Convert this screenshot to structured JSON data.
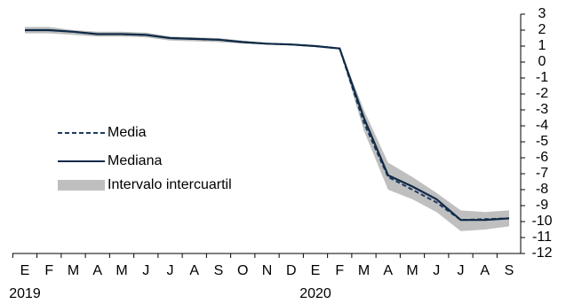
{
  "chart_data": {
    "type": "line",
    "categories": [
      "E",
      "F",
      "M",
      "A",
      "M",
      "J",
      "J",
      "A",
      "S",
      "O",
      "N",
      "D",
      "E",
      "F",
      "M",
      "A",
      "M",
      "J",
      "J",
      "A",
      "S"
    ],
    "category_years": [
      "2019",
      null,
      null,
      null,
      null,
      null,
      null,
      null,
      null,
      null,
      null,
      null,
      "2020",
      null,
      null,
      null,
      null,
      null,
      null,
      null,
      null
    ],
    "series": [
      {
        "name": "Media",
        "color": "#1f3a5f",
        "dashed": true,
        "values": [
          2.0,
          2.0,
          1.9,
          1.75,
          1.75,
          1.7,
          1.5,
          1.45,
          1.4,
          1.25,
          1.15,
          1.1,
          1.0,
          0.85,
          -3.8,
          -7.2,
          -8.0,
          -8.8,
          -9.9,
          -9.85,
          -9.8
        ]
      },
      {
        "name": "Mediana",
        "color": "#0f2a47",
        "dashed": false,
        "values": [
          2.0,
          2.0,
          1.9,
          1.75,
          1.75,
          1.7,
          1.5,
          1.45,
          1.4,
          1.25,
          1.15,
          1.1,
          1.0,
          0.85,
          -3.5,
          -7.1,
          -7.8,
          -8.6,
          -9.9,
          -9.9,
          -9.8
        ]
      },
      {
        "name": "Intervalo intercuartil",
        "color": "#bfbfbf",
        "band": true,
        "upper": [
          2.2,
          2.2,
          2.0,
          1.9,
          1.9,
          1.85,
          1.6,
          1.55,
          1.5,
          1.35,
          1.2,
          1.1,
          1.05,
          0.9,
          -3.0,
          -6.3,
          -7.2,
          -8.2,
          -9.3,
          -9.4,
          -9.3
        ],
        "lower": [
          1.8,
          1.8,
          1.7,
          1.6,
          1.6,
          1.55,
          1.35,
          1.3,
          1.25,
          1.15,
          1.1,
          1.05,
          0.95,
          0.8,
          -4.3,
          -8.0,
          -8.6,
          -9.4,
          -10.6,
          -10.5,
          -10.3
        ]
      }
    ],
    "ylim": [
      -12,
      3
    ],
    "yticks": [
      -12,
      -11,
      -10,
      -9,
      -8,
      -7,
      -6,
      -5,
      -4,
      -3,
      -2,
      -1,
      0,
      1,
      2,
      3
    ],
    "y_axis_side": "right"
  }
}
